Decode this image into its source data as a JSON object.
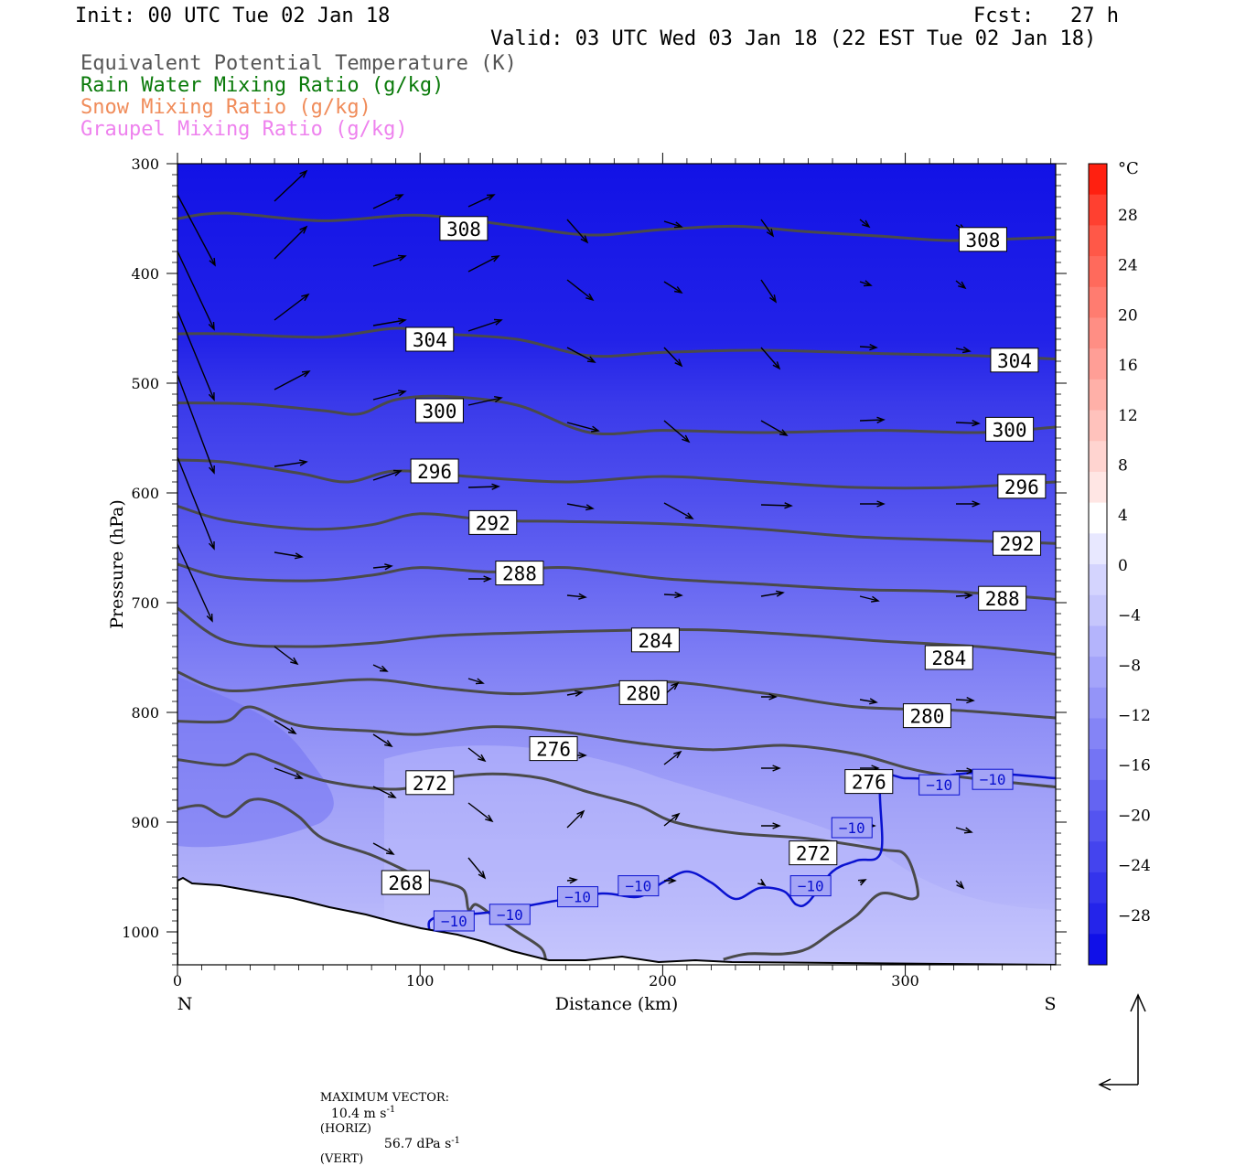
{
  "header": {
    "init": "Init: 00 UTC Tue 02 Jan 18",
    "fcst": "Fcst:   27 h",
    "valid": "Valid: 03 UTC Wed 03 Jan 18 (22 EST Tue 02 Jan 18)"
  },
  "legend_fields": [
    {
      "label": "Equivalent Potential Temperature (K)",
      "color": "#555555"
    },
    {
      "label": "Rain Water Mixing Ratio (g/kg)",
      "color": "#0a7a0a"
    },
    {
      "label": "Snow Mixing Ratio (g/kg)",
      "color": "#f08c5a"
    },
    {
      "label": "Graupel Mixing Ratio (g/kg)",
      "color": "#ee82ee"
    }
  ],
  "chart_data": {
    "type": "heatmap",
    "xlabel": "Distance (km)",
    "ylabel": "Pressure (hPa)",
    "xlim": [
      0,
      362
    ],
    "ylim": [
      1030,
      300
    ],
    "x_ticks": [
      0,
      100,
      200,
      300
    ],
    "y_ticks": [
      300,
      400,
      500,
      600,
      700,
      800,
      900,
      1000
    ],
    "x_endpoints": {
      "left": "N",
      "right": "S"
    },
    "colorbar": {
      "unit": "°C",
      "tick_labels": [
        "28",
        "24",
        "20",
        "16",
        "12",
        "8",
        "4",
        "0",
        "-4",
        "-8",
        "-12",
        "-16",
        "-20",
        "-24",
        "-28"
      ],
      "colors_top_to_bottom": [
        "#ff2010",
        "#ff4030",
        "#ff5848",
        "#ff6a5c",
        "#ff7c70",
        "#ff8e84",
        "#ff9e96",
        "#ffb0a8",
        "#ffc2bc",
        "#ffd4d0",
        "#ffe6e4",
        "#ffffff",
        "#e8e8ff",
        "#d4d4fe",
        "#c6c6fc",
        "#b4b4fc",
        "#a4a4fa",
        "#9494f8",
        "#8484f6",
        "#7474f4",
        "#6464f2",
        "#5454f0",
        "#4444ee",
        "#3434ec",
        "#2424ea",
        "#1010e8"
      ]
    },
    "theta_e_contours": [
      {
        "level": "308",
        "x": [
          0,
          20,
          60,
          100,
          140,
          170,
          200,
          230,
          260,
          290,
          320,
          362
        ],
        "p": [
          350,
          345,
          352,
          347,
          357,
          365,
          360,
          357,
          362,
          366,
          370,
          367
        ]
      },
      {
        "level": "304",
        "x": [
          0,
          20,
          60,
          90,
          110,
          140,
          170,
          200,
          240,
          290,
          330,
          362
        ],
        "p": [
          455,
          455,
          458,
          450,
          455,
          460,
          475,
          472,
          470,
          473,
          475,
          478
        ]
      },
      {
        "level": "300",
        "x": [
          0,
          30,
          60,
          75,
          90,
          110,
          140,
          170,
          200,
          240,
          290,
          330,
          362
        ],
        "p": [
          518,
          519,
          525,
          528,
          515,
          512,
          520,
          545,
          543,
          545,
          543,
          545,
          540
        ]
      },
      {
        "level": "296",
        "x": [
          0,
          20,
          50,
          70,
          90,
          120,
          160,
          200,
          240,
          280,
          320,
          362
        ],
        "p": [
          570,
          572,
          582,
          590,
          580,
          585,
          590,
          585,
          590,
          595,
          595,
          590
        ]
      },
      {
        "level": "292",
        "x": [
          0,
          20,
          55,
          80,
          100,
          130,
          160,
          200,
          240,
          280,
          320,
          362
        ],
        "p": [
          612,
          625,
          633,
          629,
          619,
          625,
          626,
          628,
          633,
          640,
          643,
          646
        ]
      },
      {
        "level": "288",
        "x": [
          0,
          20,
          55,
          80,
          100,
          130,
          160,
          200,
          240,
          280,
          320,
          362
        ],
        "p": [
          665,
          677,
          680,
          675,
          668,
          672,
          668,
          678,
          683,
          688,
          690,
          697
        ]
      },
      {
        "level": "284",
        "x": [
          0,
          20,
          50,
          80,
          110,
          150,
          190,
          220,
          260,
          290,
          330,
          362
        ],
        "p": [
          705,
          735,
          740,
          737,
          730,
          727,
          725,
          725,
          730,
          735,
          740,
          747
        ]
      },
      {
        "level": "280",
        "x": [
          0,
          20,
          50,
          80,
          110,
          140,
          170,
          200,
          240,
          280,
          320,
          362
        ],
        "p": [
          763,
          780,
          775,
          770,
          778,
          783,
          778,
          772,
          782,
          795,
          798,
          805
        ]
      },
      {
        "level": "276",
        "x": [
          0,
          20,
          30,
          50,
          80,
          100,
          130,
          160,
          190,
          220,
          250,
          280,
          310,
          362
        ],
        "p": [
          808,
          808,
          795,
          812,
          817,
          820,
          813,
          818,
          828,
          834,
          830,
          838,
          855,
          868
        ]
      },
      {
        "level": "272",
        "x": [
          0,
          20,
          30,
          40,
          60,
          90,
          110,
          130,
          150,
          170,
          190,
          205,
          230,
          260,
          290,
          300,
          305,
          303,
          290,
          280,
          270,
          260,
          250,
          235,
          225
        ],
        "p": [
          843,
          848,
          838,
          845,
          862,
          870,
          860,
          856,
          860,
          873,
          885,
          900,
          910,
          915,
          925,
          930,
          960,
          970,
          965,
          985,
          1000,
          1015,
          1020,
          1020,
          1025
        ]
      },
      {
        "level": "268",
        "x": [
          0,
          10,
          20,
          30,
          40,
          50,
          60,
          80,
          100,
          110,
          118,
          120,
          123,
          130,
          140,
          150,
          152
        ],
        "p": [
          888,
          885,
          895,
          880,
          882,
          895,
          915,
          930,
          950,
          955,
          962,
          980,
          975,
          985,
          1000,
          1015,
          1030
        ]
      }
    ],
    "isotherm": [
      {
        "level": "-10",
        "x": [
          104,
          104,
          110,
          125,
          135,
          155,
          175,
          190,
          200,
          210,
          220,
          230,
          240,
          250,
          255,
          260,
          270,
          280,
          290,
          290,
          300,
          310,
          330,
          362
        ],
        "p": [
          1000,
          990,
          985,
          983,
          980,
          972,
          965,
          968,
          955,
          945,
          955,
          970,
          960,
          963,
          975,
          973,
          945,
          935,
          927,
          862,
          860,
          860,
          855,
          860
        ]
      }
    ],
    "contour_labels": [
      {
        "text": "308",
        "x": 118,
        "p": 359
      },
      {
        "text": "308",
        "x": 332,
        "p": 369
      },
      {
        "text": "304",
        "x": 104,
        "p": 460
      },
      {
        "text": "304",
        "x": 345,
        "p": 479
      },
      {
        "text": "300",
        "x": 108,
        "p": 525
      },
      {
        "text": "300",
        "x": 343,
        "p": 542
      },
      {
        "text": "296",
        "x": 106,
        "p": 580
      },
      {
        "text": "296",
        "x": 348,
        "p": 594
      },
      {
        "text": "292",
        "x": 130,
        "p": 627
      },
      {
        "text": "292",
        "x": 346,
        "p": 646
      },
      {
        "text": "288",
        "x": 141,
        "p": 673
      },
      {
        "text": "288",
        "x": 340,
        "p": 696
      },
      {
        "text": "284",
        "x": 197,
        "p": 734
      },
      {
        "text": "284",
        "x": 318,
        "p": 750
      },
      {
        "text": "280",
        "x": 192,
        "p": 782
      },
      {
        "text": "280",
        "x": 309,
        "p": 803
      },
      {
        "text": "276",
        "x": 155,
        "p": 833
      },
      {
        "text": "276",
        "x": 285,
        "p": 863
      },
      {
        "text": "272",
        "x": 104,
        "p": 864
      },
      {
        "text": "272",
        "x": 262,
        "p": 928
      },
      {
        "text": "268",
        "x": 94,
        "p": 955
      },
      {
        "text": "-10",
        "x": 114,
        "p": 990
      },
      {
        "text": "-10",
        "x": 137,
        "p": 984
      },
      {
        "text": "-10",
        "x": 165,
        "p": 968
      },
      {
        "text": "-10",
        "x": 190,
        "p": 958
      },
      {
        "text": "-10",
        "x": 261,
        "p": 958
      },
      {
        "text": "-10",
        "x": 278,
        "p": 905
      },
      {
        "text": "-10",
        "x": 314,
        "p": 866
      },
      {
        "text": "-10",
        "x": 336,
        "p": 861
      }
    ]
  },
  "footer": {
    "max_vector_label": "MAXIMUM VECTOR:",
    "horiz": "10.4 m s",
    "horiz_unit": "(HORIZ)",
    "vert": "56.7 dPa s",
    "vert_unit": "(VERT)",
    "exp": "-1"
  }
}
